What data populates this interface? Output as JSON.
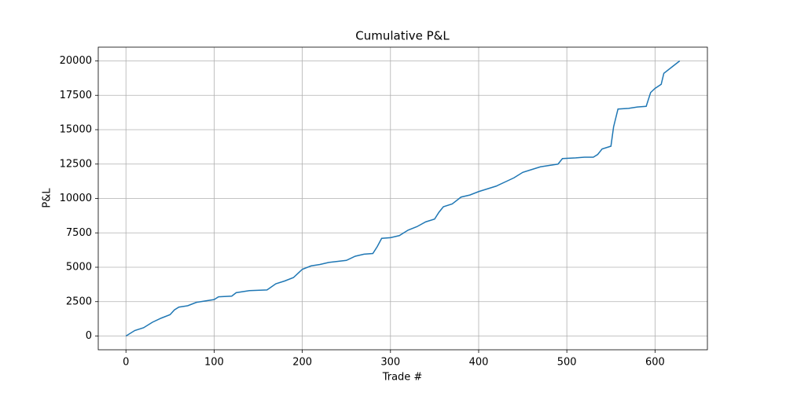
{
  "chart_data": {
    "type": "line",
    "title": "Cumulative P&L",
    "x_label": "Trade #",
    "y_label": "P&L",
    "x": [
      0,
      10,
      20,
      30,
      40,
      50,
      55,
      60,
      70,
      80,
      90,
      100,
      105,
      120,
      125,
      140,
      160,
      170,
      180,
      190,
      200,
      210,
      220,
      230,
      250,
      260,
      270,
      280,
      285,
      290,
      300,
      310,
      320,
      330,
      340,
      350,
      355,
      360,
      370,
      380,
      390,
      400,
      410,
      420,
      430,
      440,
      450,
      460,
      470,
      480,
      490,
      495,
      510,
      520,
      530,
      535,
      540,
      550,
      553,
      558,
      570,
      580,
      590,
      595,
      600,
      607,
      610,
      620,
      628
    ],
    "series": [
      {
        "name": "P&L",
        "color": "#1f77b4",
        "values": [
          0,
          400,
          600,
          1000,
          1300,
          1550,
          1900,
          2100,
          2200,
          2450,
          2550,
          2650,
          2850,
          2900,
          3150,
          3300,
          3350,
          3800,
          4000,
          4250,
          4850,
          5100,
          5200,
          5350,
          5500,
          5800,
          5950,
          6000,
          6500,
          7100,
          7150,
          7300,
          7700,
          7950,
          8300,
          8500,
          9000,
          9400,
          9600,
          10100,
          10250,
          10500,
          10700,
          10900,
          11200,
          11500,
          11900,
          12100,
          12300,
          12400,
          12500,
          12900,
          12950,
          13000,
          13000,
          13200,
          13600,
          13800,
          15200,
          16500,
          16550,
          16650,
          16700,
          17700,
          18000,
          18300,
          19100,
          19600,
          20000
        ]
      }
    ],
    "xlim": [
      -31.4,
      659.4
    ],
    "ylim": [
      -1000,
      21000
    ],
    "xticks": [
      0,
      100,
      200,
      300,
      400,
      500,
      600
    ],
    "yticks": [
      0,
      2500,
      5000,
      7500,
      10000,
      12500,
      15000,
      17500,
      20000
    ],
    "grid": true
  }
}
